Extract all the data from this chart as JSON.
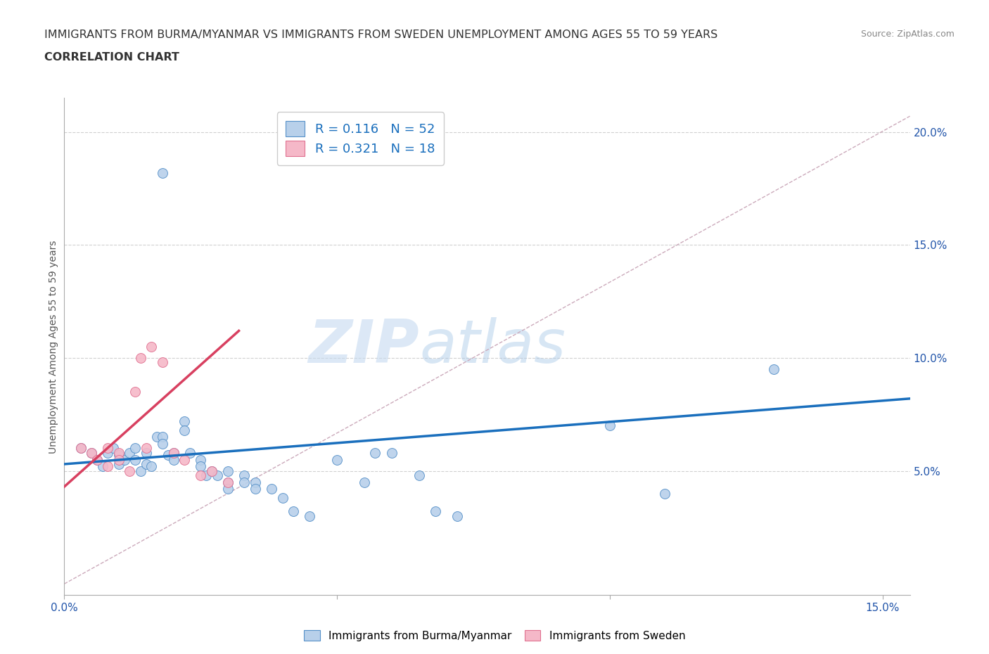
{
  "title_line1": "IMMIGRANTS FROM BURMA/MYANMAR VS IMMIGRANTS FROM SWEDEN UNEMPLOYMENT AMONG AGES 55 TO 59 YEARS",
  "title_line2": "CORRELATION CHART",
  "source": "Source: ZipAtlas.com",
  "ylabel": "Unemployment Among Ages 55 to 59 years",
  "xlim": [
    0.0,
    0.155
  ],
  "ylim": [
    -0.005,
    0.215
  ],
  "yticks_right": [
    0.05,
    0.1,
    0.15,
    0.2
  ],
  "ytick_labels_right": [
    "5.0%",
    "10.0%",
    "15.0%",
    "20.0%"
  ],
  "watermark_zip": "ZIP",
  "watermark_atlas": "atlas",
  "legend_r1": "R = 0.116",
  "legend_n1": "N = 52",
  "legend_r2": "R = 0.321",
  "legend_n2": "N = 18",
  "blue_fill": "#b8d0ea",
  "pink_fill": "#f5b8c8",
  "blue_edge": "#5590c8",
  "pink_edge": "#e07090",
  "blue_line_color": "#1a6fbd",
  "pink_line_color": "#d84060",
  "dashed_line_color": "#ccaabb",
  "blue_scatter": [
    [
      0.003,
      0.06
    ],
    [
      0.005,
      0.058
    ],
    [
      0.006,
      0.055
    ],
    [
      0.007,
      0.052
    ],
    [
      0.008,
      0.058
    ],
    [
      0.009,
      0.06
    ],
    [
      0.01,
      0.057
    ],
    [
      0.01,
      0.053
    ],
    [
      0.011,
      0.055
    ],
    [
      0.012,
      0.058
    ],
    [
      0.013,
      0.06
    ],
    [
      0.013,
      0.055
    ],
    [
      0.014,
      0.05
    ],
    [
      0.015,
      0.058
    ],
    [
      0.015,
      0.053
    ],
    [
      0.016,
      0.052
    ],
    [
      0.017,
      0.065
    ],
    [
      0.018,
      0.065
    ],
    [
      0.018,
      0.062
    ],
    [
      0.019,
      0.057
    ],
    [
      0.02,
      0.058
    ],
    [
      0.02,
      0.055
    ],
    [
      0.022,
      0.072
    ],
    [
      0.022,
      0.068
    ],
    [
      0.023,
      0.058
    ],
    [
      0.025,
      0.055
    ],
    [
      0.025,
      0.052
    ],
    [
      0.026,
      0.048
    ],
    [
      0.027,
      0.05
    ],
    [
      0.028,
      0.048
    ],
    [
      0.03,
      0.045
    ],
    [
      0.03,
      0.042
    ],
    [
      0.03,
      0.05
    ],
    [
      0.033,
      0.048
    ],
    [
      0.033,
      0.045
    ],
    [
      0.035,
      0.045
    ],
    [
      0.035,
      0.042
    ],
    [
      0.038,
      0.042
    ],
    [
      0.04,
      0.038
    ],
    [
      0.042,
      0.032
    ],
    [
      0.045,
      0.03
    ],
    [
      0.05,
      0.055
    ],
    [
      0.055,
      0.045
    ],
    [
      0.057,
      0.058
    ],
    [
      0.06,
      0.058
    ],
    [
      0.065,
      0.048
    ],
    [
      0.068,
      0.032
    ],
    [
      0.072,
      0.03
    ],
    [
      0.018,
      0.182
    ],
    [
      0.1,
      0.07
    ],
    [
      0.11,
      0.04
    ],
    [
      0.13,
      0.095
    ]
  ],
  "pink_scatter": [
    [
      0.003,
      0.06
    ],
    [
      0.005,
      0.058
    ],
    [
      0.006,
      0.055
    ],
    [
      0.008,
      0.052
    ],
    [
      0.008,
      0.06
    ],
    [
      0.01,
      0.058
    ],
    [
      0.01,
      0.055
    ],
    [
      0.012,
      0.05
    ],
    [
      0.013,
      0.085
    ],
    [
      0.014,
      0.1
    ],
    [
      0.015,
      0.06
    ],
    [
      0.016,
      0.105
    ],
    [
      0.018,
      0.098
    ],
    [
      0.02,
      0.058
    ],
    [
      0.022,
      0.055
    ],
    [
      0.025,
      0.048
    ],
    [
      0.027,
      0.05
    ],
    [
      0.03,
      0.045
    ]
  ],
  "blue_line_x": [
    0.0,
    0.155
  ],
  "blue_line_y": [
    0.053,
    0.082
  ],
  "pink_line_x": [
    0.0,
    0.032
  ],
  "pink_line_y": [
    0.043,
    0.112
  ],
  "diag_line_x": [
    0.0,
    0.155
  ],
  "diag_line_y": [
    0.0,
    0.207
  ],
  "title_fontsize": 11.5,
  "label_fontsize": 10,
  "tick_fontsize": 11
}
